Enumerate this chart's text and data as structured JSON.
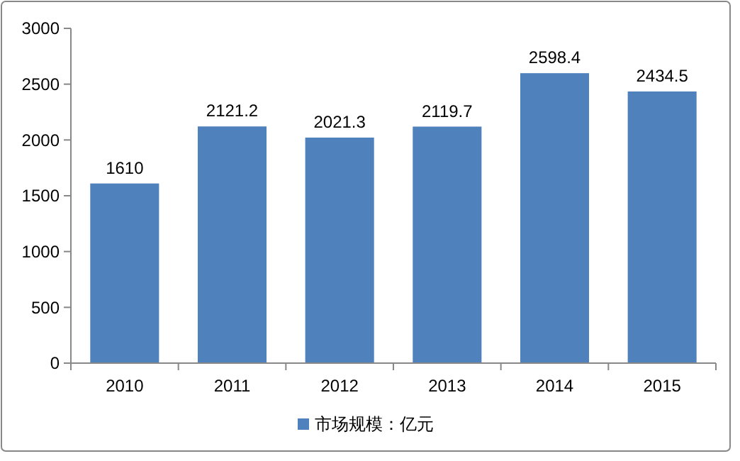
{
  "chart_data": {
    "type": "bar",
    "categories": [
      "2010",
      "2011",
      "2012",
      "2013",
      "2014",
      "2015"
    ],
    "series": [
      {
        "name": "市场规模：亿元",
        "color": "#4f81bd",
        "values": [
          1610,
          2121.2,
          2021.3,
          2119.7,
          2598.4,
          2434.5
        ]
      }
    ],
    "ylim": [
      0,
      3000
    ],
    "yticks": [
      0,
      500,
      1000,
      1500,
      2000,
      2500,
      3000
    ],
    "grid": false,
    "legend": "bottom",
    "data_labels": true
  }
}
